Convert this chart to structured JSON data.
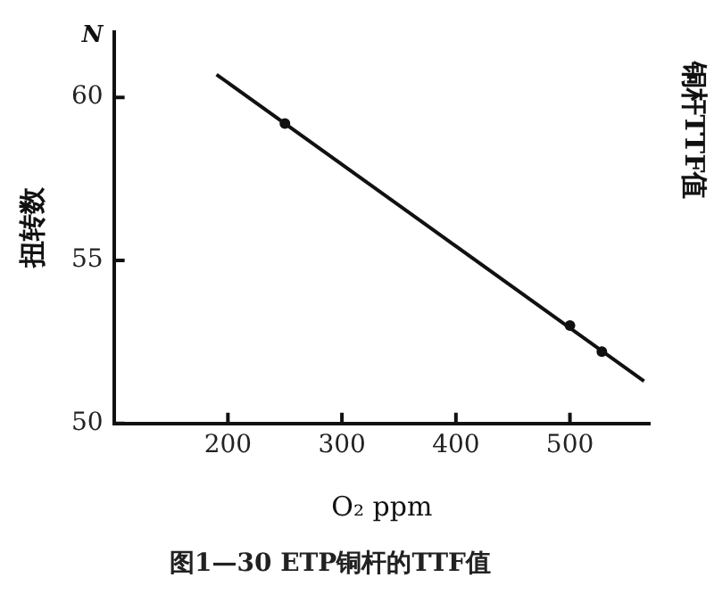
{
  "chart_data": {
    "type": "scatter",
    "title": "图1—30 ETP铜杆的TTF值",
    "xlabel": "O₂ ppm",
    "ylabel": "扭转数",
    "annotations": [
      "N",
      "铜杆TTF值"
    ],
    "xlim": [
      100,
      570
    ],
    "xticks": [
      200,
      300,
      400,
      500
    ],
    "ylim": [
      50,
      62
    ],
    "yticks": [
      50,
      55,
      60
    ],
    "grid": false,
    "legend": false,
    "series": [
      {
        "type": "line",
        "color": "#111111",
        "x": [
          190,
          565
        ],
        "values": [
          60.7,
          51.3
        ]
      },
      {
        "type": "scatter",
        "marker": "circle",
        "color": "#111111",
        "x": [
          250,
          500,
          528
        ],
        "values": [
          59.2,
          53.0,
          52.2
        ]
      }
    ]
  }
}
